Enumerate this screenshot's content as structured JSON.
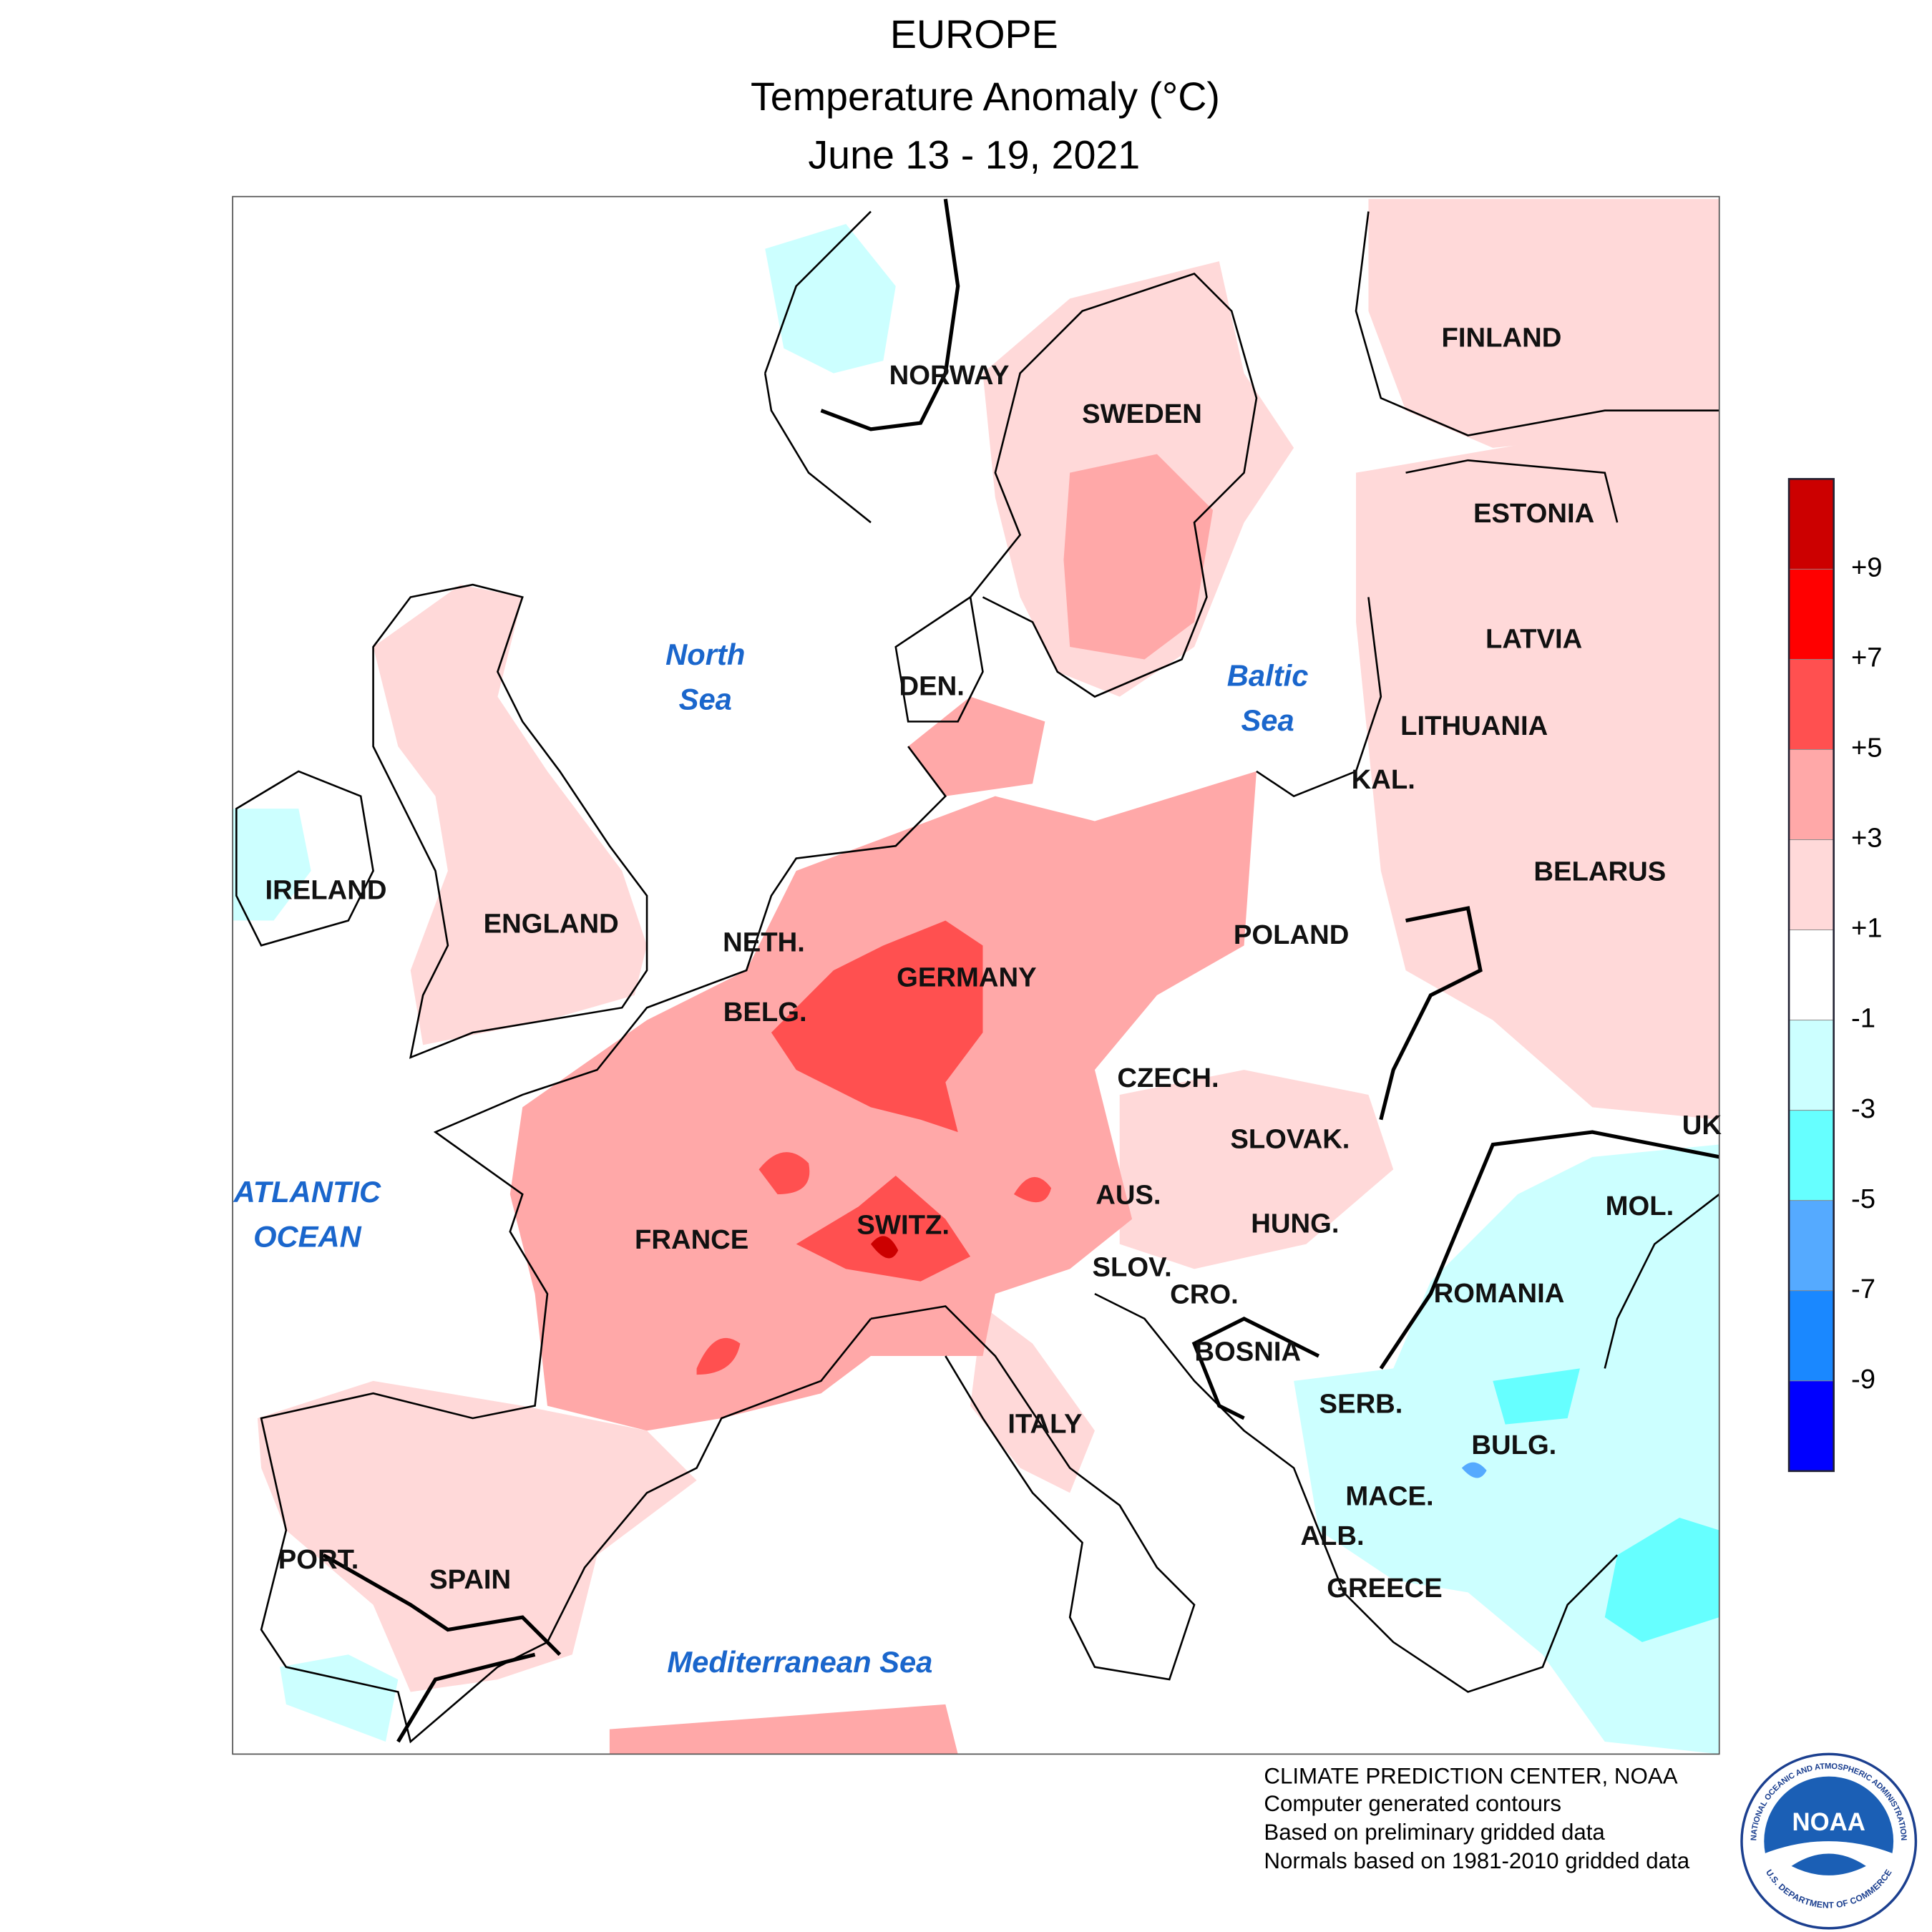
{
  "header": {
    "title": "EUROPE",
    "subtitle": "Temperature Anomaly (°C)",
    "period": "June 13 - 19, 2021"
  },
  "countries": [
    "NORWAY",
    "SWEDEN",
    "FINLAND",
    "ESTONIA",
    "LATVIA",
    "LITHUANIA",
    "KAL.",
    "BELARUS",
    "POLAND",
    "DEN.",
    "NETH.",
    "BELG.",
    "GERMANY",
    "CZECH.",
    "SLOVAK.",
    "AUS.",
    "HUNG.",
    "SWITZ.",
    "FRANCE",
    "SLOV.",
    "CRO.",
    "BOSNIA",
    "ROMANIA",
    "MOL.",
    "UK",
    "SERB.",
    "BULG.",
    "MACE.",
    "ALB.",
    "GREECE",
    "ITALY",
    "PORT.",
    "SPAIN",
    "IRELAND",
    "ENGLAND"
  ],
  "seas": {
    "north": [
      "North",
      "Sea"
    ],
    "baltic": [
      "Baltic",
      "Sea"
    ],
    "atlantic": [
      "ATLANTIC",
      "OCEAN"
    ],
    "mediterranean": "Mediterranean Sea"
  },
  "legend": {
    "colors": [
      "#cc0000",
      "#ff0000",
      "#ff5050",
      "#ffa8a8",
      "#ffd9d9",
      "#ffffff",
      "#ccffff",
      "#66ffff",
      "#55aaff",
      "#1a88ff",
      "#0000ff"
    ],
    "labels": [
      "+9",
      "+7",
      "+5",
      "+3",
      "+1",
      "-1",
      "-3",
      "-5",
      "-7",
      "-9"
    ]
  },
  "footer": [
    "CLIMATE PREDICTION CENTER, NOAA",
    "Computer generated contours",
    "Based on preliminary gridded data",
    "Normals based on 1981-2010 gridded data"
  ],
  "logo": {
    "name": "NOAA",
    "ring_top": "NATIONAL OCEANIC AND ATMOSPHERIC ADMINISTRATION",
    "ring_bottom": "U.S. DEPARTMENT OF COMMERCE"
  }
}
